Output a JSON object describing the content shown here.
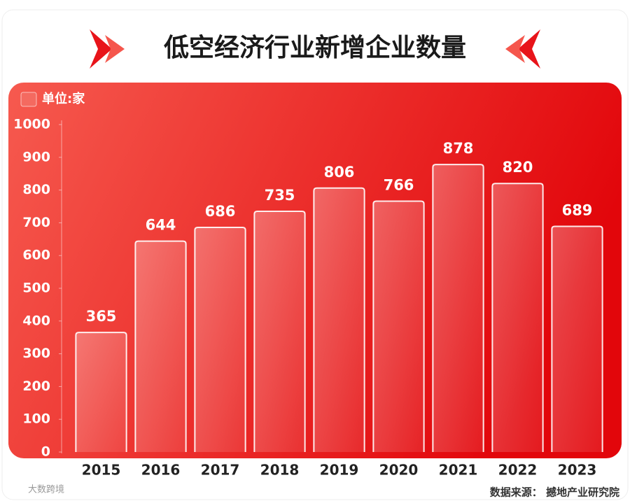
{
  "chart_data": {
    "type": "bar",
    "title": "低空经济行业新增企业数量",
    "unit_label": "单位:家",
    "categories": [
      "2015",
      "2016",
      "2017",
      "2018",
      "2019",
      "2020",
      "2021",
      "2022",
      "2023"
    ],
    "values": [
      365,
      644,
      686,
      735,
      806,
      766,
      878,
      820,
      689
    ],
    "color": "#f0453c",
    "ylim": [
      0,
      1000
    ],
    "yticks": [
      0,
      100,
      200,
      300,
      400,
      500,
      600,
      700,
      800,
      900,
      1000
    ],
    "source": "数据来源： 撼地产业研究院",
    "watermark": "大数跨境"
  }
}
